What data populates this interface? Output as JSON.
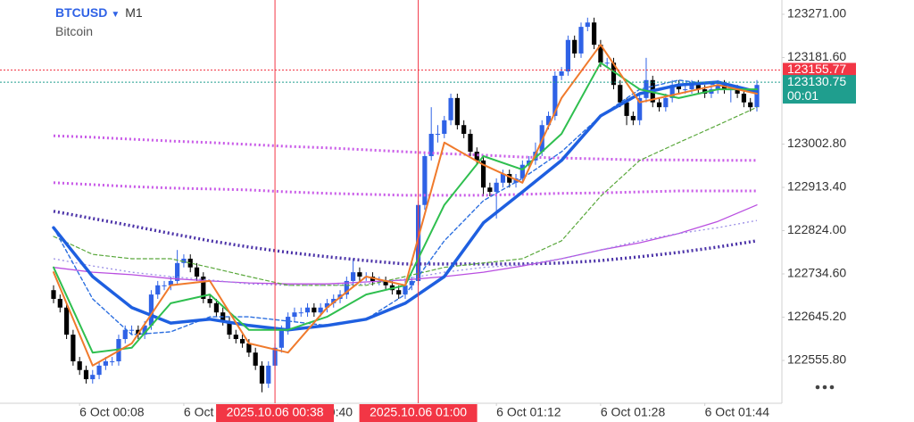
{
  "chart_data": {
    "type": "candlestick",
    "title": "BTCUSD",
    "timeframe": "M1",
    "subtitle": "Bitcoin",
    "up_color": "#2f62e6",
    "down_color": "#000000",
    "xlim": [
      0,
      108
    ],
    "ylim": [
      122467.3,
      123300.5
    ],
    "yticks": [
      {
        "value": 122555.8,
        "label": "122555.80"
      },
      {
        "value": 122645.2,
        "label": "122645.20"
      },
      {
        "value": 122734.6,
        "label": "122734.60"
      },
      {
        "value": 122824,
        "label": "122824.00"
      },
      {
        "value": 122913.4,
        "label": "122913.40"
      },
      {
        "value": 123002.8,
        "label": "123002.80"
      },
      {
        "value": 123181.6,
        "label": "123181.60"
      },
      {
        "value": 123271,
        "label": "123271.00"
      }
    ],
    "xticks": [
      {
        "value": 4,
        "label": "6 Oct 00:08"
      },
      {
        "value": 20,
        "label": "6 Oct 00:24"
      },
      {
        "value": 36,
        "label": "6 Oct 00:40"
      },
      {
        "value": 68,
        "label": "6 Oct 01:12"
      },
      {
        "value": 84,
        "label": "6 Oct 01:28"
      },
      {
        "value": 100,
        "label": "6 Oct 01:44"
      }
    ],
    "candles": [
      [
        122701,
        122711,
        122674,
        122683
      ],
      [
        122683,
        122692,
        122655,
        122665
      ],
      [
        122665,
        122674,
        122600,
        122609
      ],
      [
        122609,
        122619,
        122545,
        122554
      ],
      [
        122554,
        122563,
        122526,
        122536
      ],
      [
        122536,
        122545,
        122508,
        122517
      ],
      [
        122517,
        122536,
        122508,
        122526
      ],
      [
        122526,
        122554,
        122517,
        122545
      ],
      [
        122545,
        122563,
        122536,
        122554
      ],
      [
        122554,
        122563,
        122545,
        122554
      ],
      [
        122554,
        122609,
        122545,
        122600
      ],
      [
        122600,
        122628,
        122591,
        122619
      ],
      [
        122619,
        122628,
        122609,
        122619
      ],
      [
        122619,
        122628,
        122600,
        122609
      ],
      [
        122609,
        122637,
        122600,
        122628
      ],
      [
        122628,
        122701,
        122619,
        122692
      ],
      [
        122692,
        122720,
        122683,
        122711
      ],
      [
        122711,
        122720,
        122701,
        122711
      ],
      [
        122711,
        122729,
        122701,
        122720
      ],
      [
        122720,
        122784,
        122711,
        122757
      ],
      [
        122757,
        122775,
        122748,
        122766
      ],
      [
        122766,
        122775,
        122738,
        122748
      ],
      [
        122748,
        122757,
        122720,
        122729
      ],
      [
        122729,
        122738,
        122674,
        122683
      ],
      [
        122683,
        122692,
        122665,
        122674
      ],
      [
        122674,
        122683,
        122646,
        122655
      ],
      [
        122655,
        122665,
        122628,
        122637
      ],
      [
        122637,
        122646,
        122600,
        122609
      ],
      [
        122609,
        122619,
        122591,
        122600
      ],
      [
        122600,
        122609,
        122582,
        122591
      ],
      [
        122591,
        122600,
        122563,
        122572
      ],
      [
        122572,
        122582,
        122536,
        122545
      ],
      [
        122545,
        122554,
        122490,
        122508
      ],
      [
        122508,
        122554,
        122499,
        122545
      ],
      [
        122545,
        122591,
        122536,
        122582
      ],
      [
        122582,
        122628,
        122572,
        122619
      ],
      [
        122619,
        122655,
        122609,
        122646
      ],
      [
        122646,
        122665,
        122637,
        122655
      ],
      [
        122655,
        122665,
        122646,
        122655
      ],
      [
        122655,
        122674,
        122646,
        122665
      ],
      [
        122665,
        122674,
        122646,
        122655
      ],
      [
        122655,
        122674,
        122646,
        122665
      ],
      [
        122665,
        122683,
        122655,
        122674
      ],
      [
        122674,
        122692,
        122665,
        122683
      ],
      [
        122683,
        122701,
        122674,
        122692
      ],
      [
        122692,
        122729,
        122683,
        122720
      ],
      [
        122720,
        122766,
        122711,
        122738
      ],
      [
        122738,
        122748,
        122720,
        122729
      ],
      [
        122729,
        122738,
        122720,
        122729
      ],
      [
        122729,
        122738,
        122711,
        122720
      ],
      [
        122720,
        122729,
        122711,
        122720
      ],
      [
        122720,
        122729,
        122701,
        122711
      ],
      [
        122711,
        122720,
        122692,
        122701
      ],
      [
        122701,
        122711,
        122683,
        122692
      ],
      [
        122692,
        122720,
        122683,
        122711
      ],
      [
        122711,
        122729,
        122701,
        122720
      ],
      [
        122720,
        122886,
        122711,
        122877
      ],
      [
        122877,
        122987,
        122867,
        122978
      ],
      [
        122978,
        123079,
        122969,
        123024
      ],
      [
        123024,
        123042,
        123006,
        123024
      ],
      [
        123024,
        123061,
        123015,
        123052
      ],
      [
        123052,
        123107,
        123042,
        123098
      ],
      [
        123098,
        123107,
        123033,
        123042
      ],
      [
        123042,
        123052,
        123015,
        123024
      ],
      [
        123024,
        123033,
        122978,
        122987
      ],
      [
        122987,
        122996,
        122960,
        122969
      ],
      [
        122969,
        122978,
        122895,
        122913
      ],
      [
        122913,
        122923,
        122895,
        122904
      ],
      [
        122904,
        122932,
        122849,
        122923
      ],
      [
        122923,
        122950,
        122913,
        122941
      ],
      [
        122941,
        122950,
        122913,
        122923
      ],
      [
        122923,
        122941,
        122913,
        122932
      ],
      [
        122932,
        122969,
        122923,
        122960
      ],
      [
        122960,
        122978,
        122950,
        122969
      ],
      [
        122969,
        123006,
        122960,
        122987
      ],
      [
        122987,
        123052,
        122978,
        123042
      ],
      [
        123042,
        123070,
        123033,
        123061
      ],
      [
        123061,
        123153,
        123052,
        123144
      ],
      [
        123144,
        123162,
        123135,
        123153
      ],
      [
        123153,
        123227,
        123144,
        123218
      ],
      [
        123218,
        123227,
        123181,
        123190
      ],
      [
        123190,
        123254,
        123181,
        123245
      ],
      [
        123245,
        123264,
        123236,
        123254
      ],
      [
        123254,
        123264,
        123199,
        123208
      ],
      [
        123208,
        123218,
        123162,
        123171
      ],
      [
        123171,
        123181,
        123162,
        123171
      ],
      [
        123171,
        123181,
        123116,
        123125
      ],
      [
        123125,
        123135,
        123079,
        123089
      ],
      [
        123089,
        123098,
        123042,
        123061
      ],
      [
        123061,
        123070,
        123042,
        123052
      ],
      [
        123052,
        123107,
        123042,
        123098
      ],
      [
        123098,
        123181,
        123089,
        123135
      ],
      [
        123135,
        123144,
        123079,
        123089
      ],
      [
        123089,
        123098,
        123070,
        123079
      ],
      [
        123079,
        123107,
        123070,
        123098
      ],
      [
        123098,
        123135,
        123089,
        123125
      ],
      [
        123125,
        123135,
        123107,
        123116
      ],
      [
        123116,
        123125,
        123107,
        123116
      ],
      [
        123116,
        123135,
        123107,
        123125
      ],
      [
        123125,
        123135,
        123107,
        123116
      ],
      [
        123116,
        123125,
        123098,
        123107
      ],
      [
        123107,
        123125,
        123098,
        123116
      ],
      [
        123116,
        123135,
        123107,
        123125
      ],
      [
        123125,
        123135,
        123107,
        123116
      ],
      [
        123116,
        123125,
        123089,
        123116
      ],
      [
        123116,
        123125,
        123098,
        123107
      ],
      [
        123107,
        123116,
        123079,
        123089
      ],
      [
        123089,
        123098,
        123070,
        123079
      ],
      [
        123079,
        123135,
        123070,
        123125
      ]
    ],
    "lines": {
      "x": [
        0,
        6,
        12,
        18,
        24,
        30,
        36,
        42,
        48,
        54,
        60,
        66,
        72,
        78,
        84,
        90,
        96,
        102,
        108
      ],
      "series": [
        {
          "color": "#c95be8",
          "style": "dotted",
          "width": 3,
          "values": [
            123020,
            123017,
            123013,
            123009,
            123006,
            123002,
            122998,
            122995,
            122991,
            122987,
            122983,
            122980,
            122976,
            122974,
            122972,
            122970,
            122970,
            122969,
            122969
          ]
        },
        {
          "color": "#c95be8",
          "style": "dotted",
          "width": 3,
          "values": [
            122923,
            122919,
            122915,
            122912,
            122910,
            122908,
            122904,
            122901,
            122899,
            122897,
            122897,
            122897,
            122899,
            122901,
            122902,
            122904,
            122906,
            122906,
            122906
          ]
        },
        {
          "color": "#4b32a8",
          "style": "dotted",
          "width": 3.5,
          "values": [
            122864,
            122849,
            122834,
            122818,
            122803,
            122790,
            122779,
            122770,
            122762,
            122755,
            122755,
            122755,
            122755,
            122757,
            122762,
            122770,
            122779,
            122790,
            122803
          ]
        },
        {
          "color": "#b94ee0",
          "style": "solid",
          "width": 1.3,
          "values": [
            122748,
            122738,
            122733,
            122725,
            122720,
            122716,
            122714,
            122714,
            122718,
            122722,
            122729,
            122738,
            122751,
            122766,
            122784,
            122799,
            122818,
            122843,
            122877
          ]
        },
        {
          "color": "#9a8ee6",
          "style": "dotted",
          "width": 1.3,
          "values": [
            122766,
            122751,
            122738,
            122729,
            122722,
            122714,
            122711,
            122711,
            122714,
            122724,
            122738,
            122748,
            122753,
            122766,
            122784,
            122803,
            122818,
            122830,
            122845
          ]
        },
        {
          "color": "#5aa83c",
          "style": "dashed",
          "width": 1.2,
          "values": [
            122812,
            122775,
            122766,
            122766,
            122748,
            122729,
            122711,
            122711,
            122711,
            122729,
            122748,
            122757,
            122766,
            122803,
            122895,
            122969,
            123006,
            123042,
            123079
          ]
        },
        {
          "color": "#2c6fe0",
          "style": "dashed",
          "width": 1.4,
          "values": [
            122830,
            122683,
            122609,
            122615,
            122646,
            122646,
            122637,
            122628,
            122641,
            122692,
            122803,
            122886,
            122932,
            122987,
            123061,
            123116,
            123135,
            123125,
            123107
          ]
        },
        {
          "color": "#1e5fe0",
          "style": "solid",
          "width": 3.5,
          "values": [
            122830,
            122729,
            122665,
            122633,
            122641,
            122628,
            122619,
            122628,
            122641,
            122674,
            122729,
            122840,
            122904,
            122969,
            123061,
            123107,
            123125,
            123131,
            123111
          ]
        },
        {
          "color": "#2fbf4f",
          "style": "solid",
          "width": 2,
          "values": [
            122748,
            122572,
            122582,
            122674,
            122692,
            122619,
            122619,
            122646,
            122692,
            122711,
            122877,
            122978,
            122950,
            123024,
            123171,
            123116,
            123098,
            123116,
            123116
          ]
        },
        {
          "color": "#f07a2c",
          "style": "solid",
          "width": 2,
          "values": [
            122738,
            122545,
            122591,
            122711,
            122720,
            122591,
            122572,
            122665,
            122729,
            122711,
            123006,
            122960,
            122923,
            123098,
            123208,
            123089,
            123107,
            123125,
            123107
          ]
        }
      ]
    },
    "price_lines": [
      {
        "value": 123155.77,
        "color": "#f23645"
      },
      {
        "value": 123130.75,
        "color": "#1f9e8e"
      }
    ],
    "countdown": "00:01",
    "markers": [
      {
        "x": 34,
        "label": "2025.10.06 00:38",
        "color": "#f23645"
      },
      {
        "x": 56,
        "label": "2025.10.06 01:00",
        "color": "#f23645"
      }
    ]
  }
}
